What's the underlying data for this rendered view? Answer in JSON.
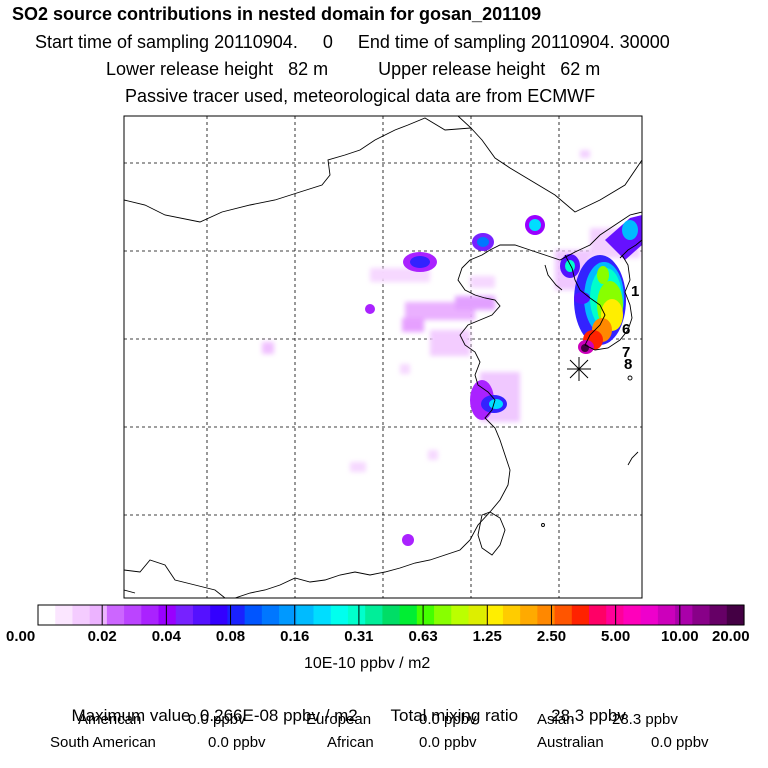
{
  "header": {
    "title": "SO2 source contributions in nested domain for gosan_201109",
    "sampling": "Start time of sampling 20110904.     0     End time of sampling 20110904. 30000",
    "release": "Lower release height   82 m          Upper release height   62 m",
    "tracer": "Passive tracer used, meteorological data are from ECMWF"
  },
  "map": {
    "receptor_marker": "asterisk-star",
    "labels": [
      "1",
      "6",
      "7",
      "8"
    ]
  },
  "colorbar": {
    "tick_labels": [
      "0.00",
      "0.02",
      "0.04",
      "0.08",
      "0.16",
      "0.31",
      "0.63",
      "1.25",
      "2.50",
      "5.00",
      "10.00",
      "20.00"
    ],
    "units": "10E-10 ppbv / m2",
    "colors": [
      "#ffffff",
      "#fbe6ff",
      "#f4ccff",
      "#ecb3ff",
      "#cc66ff",
      "#bb44ff",
      "#aa22ff",
      "#9900ff",
      "#7722ff",
      "#5511ff",
      "#3300ff",
      "#1a22ff",
      "#0055ff",
      "#0077ff",
      "#0099ff",
      "#00bbff",
      "#00ddff",
      "#00ffee",
      "#00ffcc",
      "#00ee99",
      "#00dd66",
      "#00ee33",
      "#44ff00",
      "#88ff00",
      "#bbff00",
      "#ddee00",
      "#ffee00",
      "#ffcc00",
      "#ffaa00",
      "#ff8800",
      "#ff5500",
      "#ff2200",
      "#ff0066",
      "#ff0099",
      "#ff00bb",
      "#ee00cc",
      "#cc00bb",
      "#aa00aa",
      "#880088",
      "#660066",
      "#440044"
    ]
  },
  "summary": {
    "max_label": "Maximum value  0.266E-08 ppbv / m2",
    "total_label": "Total mixing ratio       28.3 ppbv",
    "american_label": "American",
    "american_value": "0.0 ppbv",
    "european_label": "European",
    "european_value": "0.0 ppbv",
    "asian_label": "Asian",
    "asian_value": "28.3 ppbv",
    "south_american_label": "South American",
    "south_american_value": "0.0 ppbv",
    "african_label": "African",
    "african_value": "0.0 ppbv",
    "australian_label": "Australian",
    "australian_value": "0.0 ppbv"
  }
}
